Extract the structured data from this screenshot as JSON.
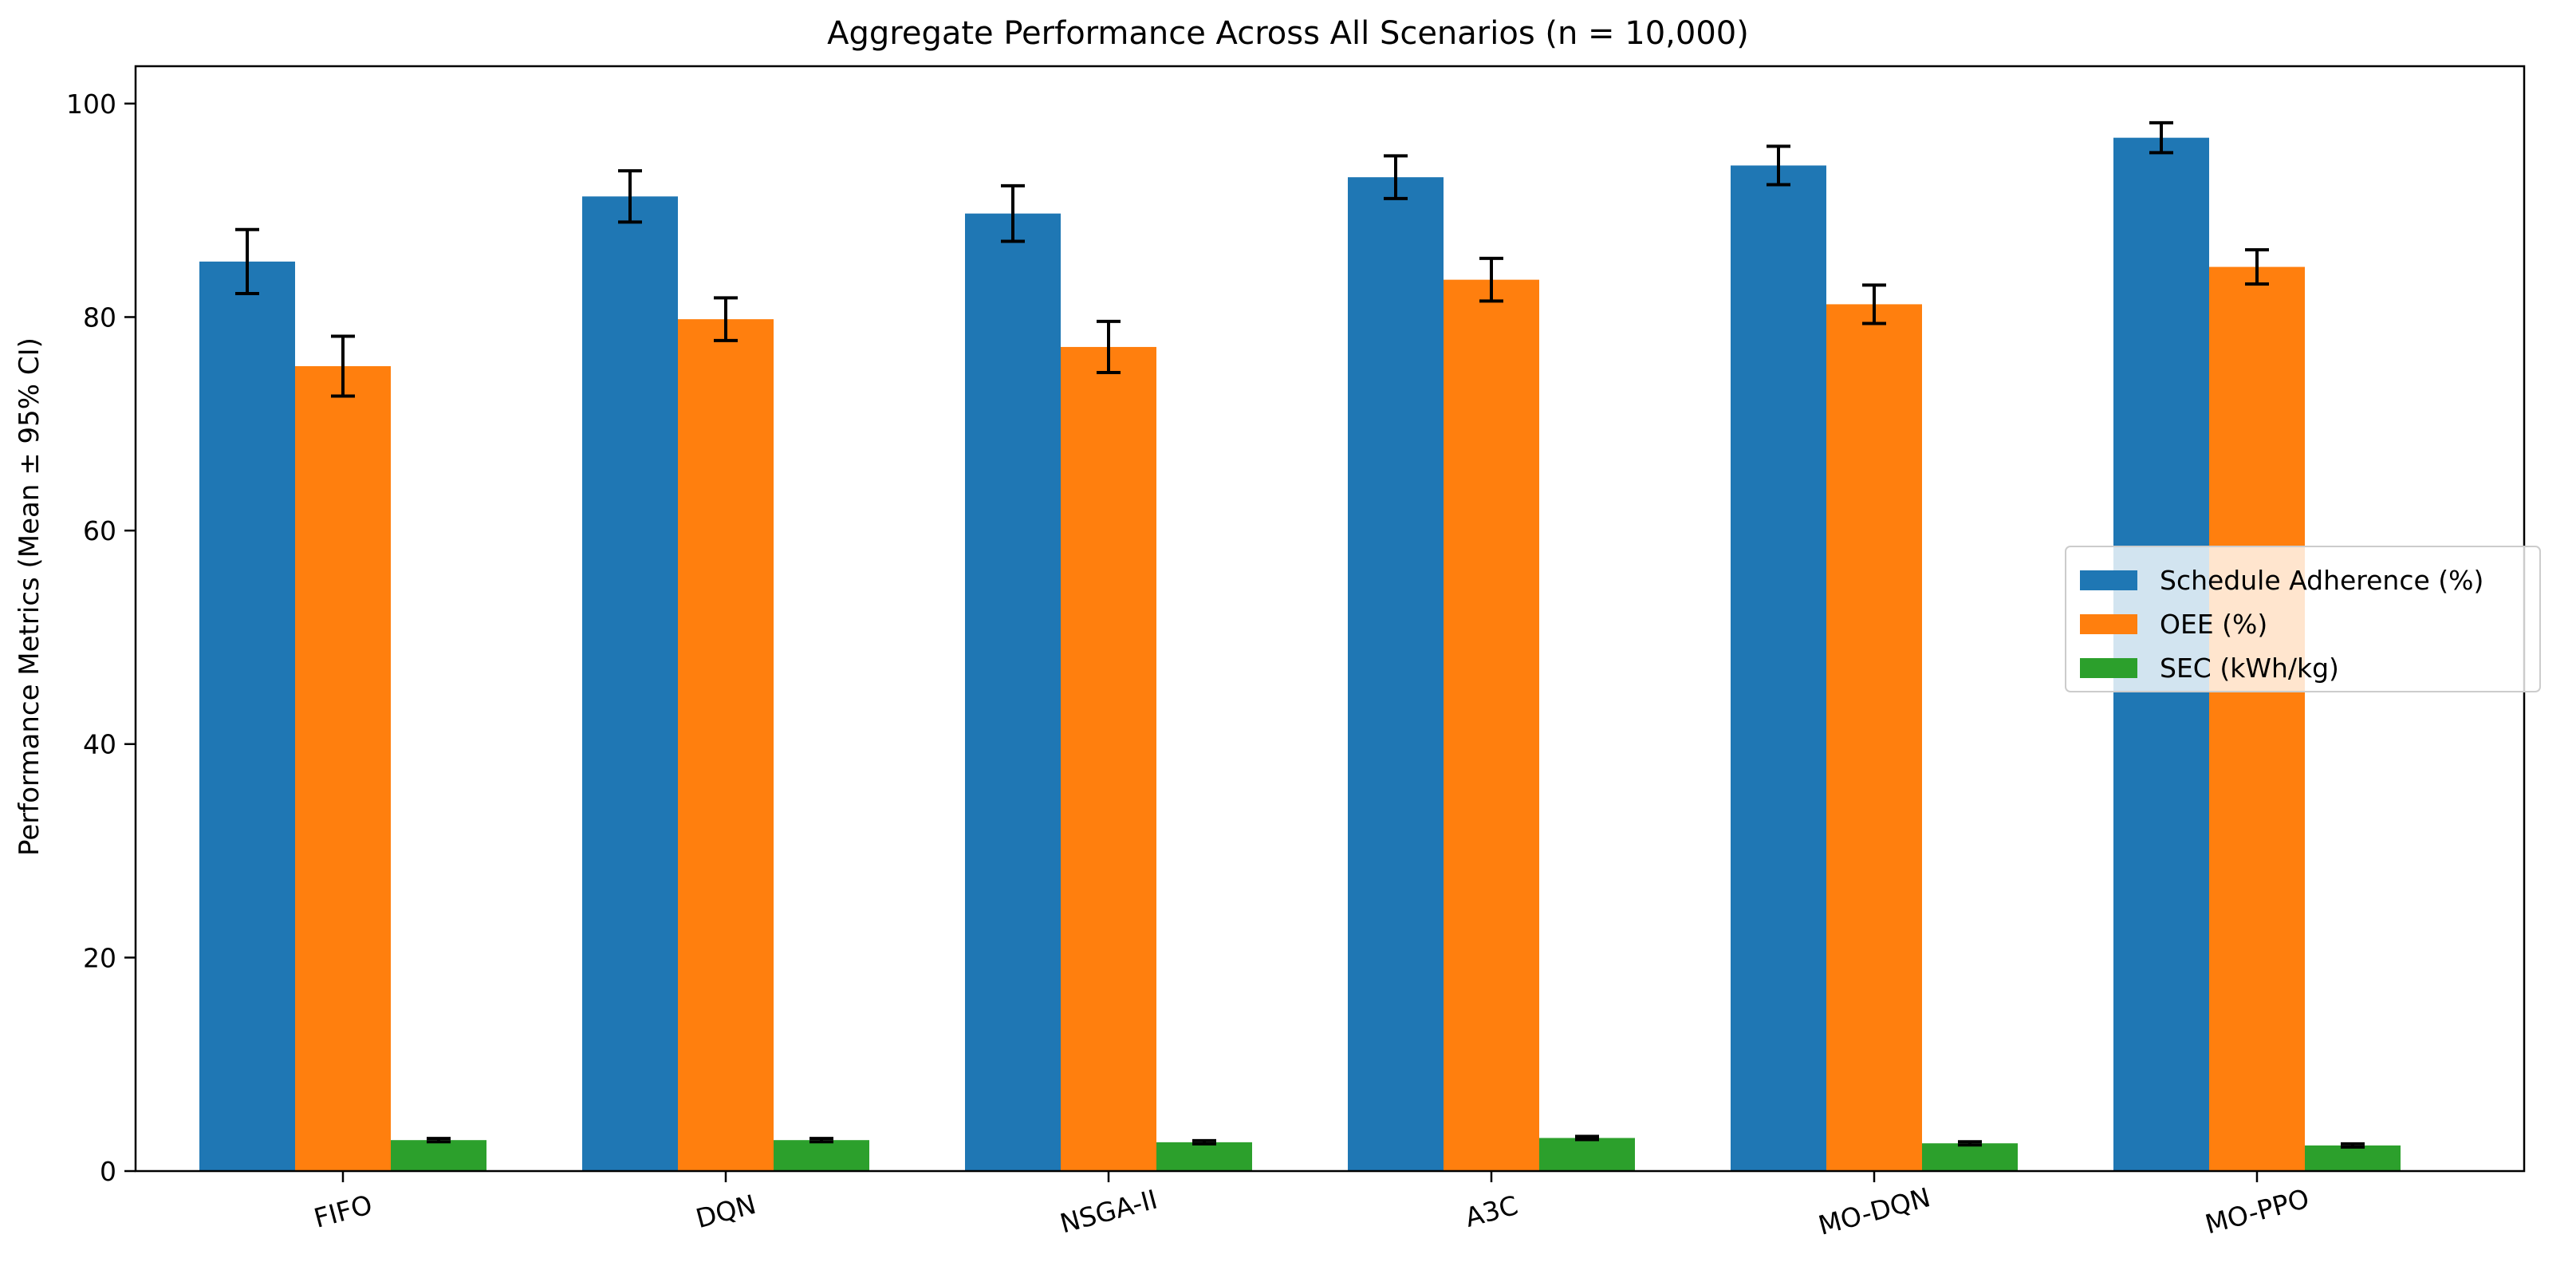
{
  "chart_data": {
    "type": "bar",
    "title": "Aggregate Performance Across All Scenarios (n = 10,000)",
    "xlabel": "",
    "ylabel": "Performance Metrics (Mean ± 95% CI)",
    "ylim": [
      0,
      103.5
    ],
    "yticks": [
      0,
      20,
      40,
      60,
      80,
      100
    ],
    "categories": [
      "FIFO",
      "DQN",
      "NSGA-II",
      "A3C",
      "MO-DQN",
      "MO-PPO"
    ],
    "series": [
      {
        "name": "Schedule Adherence (%)",
        "color": "#1f77b4",
        "values": [
          85.2,
          91.3,
          89.7,
          93.1,
          94.2,
          96.8
        ],
        "errors": [
          3.0,
          2.4,
          2.6,
          2.0,
          1.8,
          1.4
        ]
      },
      {
        "name": "OEE (%)",
        "color": "#ff7f0e",
        "values": [
          75.4,
          79.8,
          77.2,
          83.5,
          81.2,
          84.7
        ],
        "errors": [
          2.8,
          2.0,
          2.4,
          2.0,
          1.8,
          1.6
        ]
      },
      {
        "name": "SEC (kWh/kg)",
        "color": "#2ca02c",
        "values": [
          2.9,
          2.9,
          2.7,
          3.1,
          2.6,
          2.4
        ],
        "errors": [
          0.15,
          0.15,
          0.15,
          0.15,
          0.15,
          0.15
        ]
      }
    ],
    "legend_position": "center-right",
    "grid": false,
    "error_bars": true,
    "xtick_rotation": -15
  }
}
